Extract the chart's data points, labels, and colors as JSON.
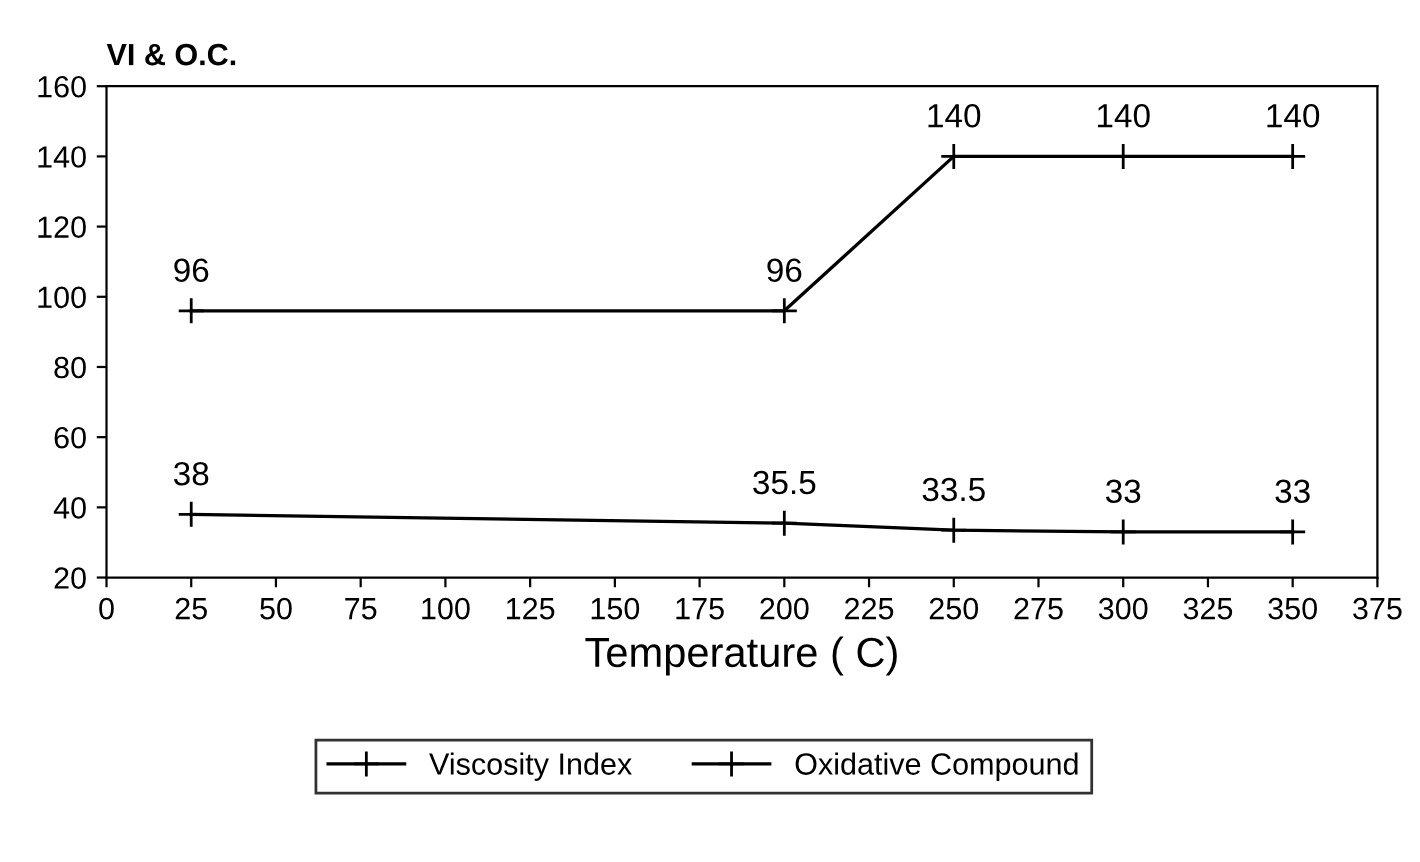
{
  "chart_data": {
    "type": "line",
    "ylabel": "VI & O.C.",
    "xlabel": "Temperature ( C)",
    "x": [
      25,
      200,
      250,
      300,
      350
    ],
    "series": [
      {
        "name": "Viscosity Index",
        "color": "#000000",
        "values": [
          96,
          96,
          140,
          140,
          140
        ]
      },
      {
        "name": "Oxidative Compound",
        "color": "#000000",
        "values": [
          38,
          35.5,
          33.5,
          33,
          33
        ]
      }
    ],
    "xlim": [
      0,
      375
    ],
    "xticks": [
      0,
      25,
      50,
      75,
      100,
      125,
      150,
      175,
      200,
      225,
      250,
      275,
      300,
      325,
      350,
      375
    ],
    "ylim": [
      20,
      160
    ],
    "yticks": [
      20,
      40,
      60,
      80,
      100,
      120,
      140,
      160
    ],
    "data_labels": true,
    "legend": "bottom",
    "marker": "cross",
    "line_style": "solid",
    "grid": false
  }
}
